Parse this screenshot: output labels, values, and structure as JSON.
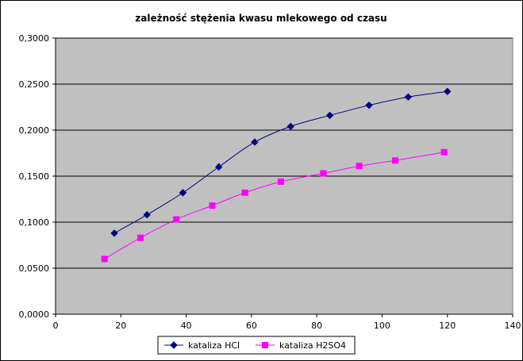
{
  "chart_data": {
    "type": "line",
    "title": "zależność stężenia kwasu mlekowego od czasu",
    "xlabel": "",
    "ylabel": "",
    "xlim": [
      0,
      140
    ],
    "ylim": [
      0,
      0.3
    ],
    "x_ticks": [
      "0",
      "20",
      "40",
      "60",
      "80",
      "100",
      "120",
      "140"
    ],
    "y_ticks": [
      "0,0000",
      "0,0500",
      "0,1000",
      "0,1500",
      "0,2000",
      "0,2500",
      "0,3000"
    ],
    "grid": "horizontal",
    "plot_background": "#c0c0c0",
    "legend_position": "bottom",
    "series": [
      {
        "name": "kataliza HCl",
        "color": "#000080",
        "marker": "diamond",
        "points": [
          [
            18,
            0.088
          ],
          [
            28,
            0.108
          ],
          [
            39,
            0.132
          ],
          [
            50,
            0.16
          ],
          [
            61,
            0.187
          ],
          [
            72,
            0.204
          ],
          [
            84,
            0.216
          ],
          [
            96,
            0.227
          ],
          [
            108,
            0.236
          ],
          [
            120,
            0.242
          ]
        ]
      },
      {
        "name": "kataliza H2SO4",
        "color": "#ff00ff",
        "marker": "square",
        "points": [
          [
            15,
            0.06
          ],
          [
            26,
            0.083
          ],
          [
            37,
            0.103
          ],
          [
            48,
            0.118
          ],
          [
            58,
            0.132
          ],
          [
            69,
            0.144
          ],
          [
            82,
            0.153
          ],
          [
            93,
            0.161
          ],
          [
            104,
            0.167
          ],
          [
            119,
            0.176
          ]
        ]
      }
    ]
  }
}
